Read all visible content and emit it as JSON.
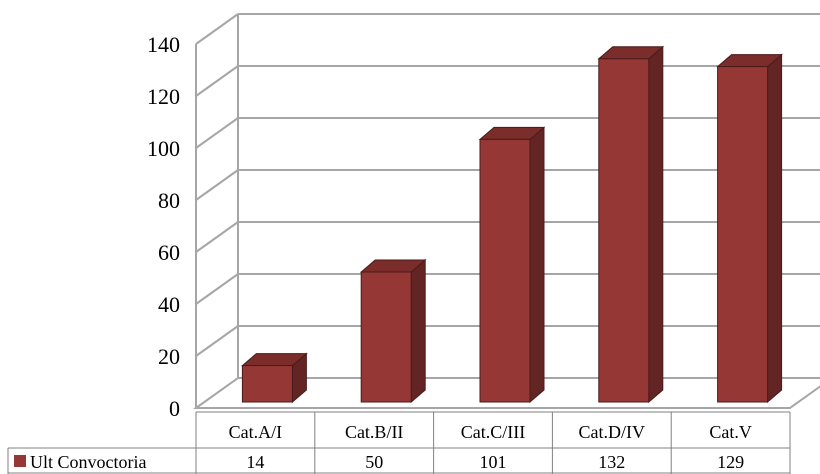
{
  "chart_data": {
    "type": "bar",
    "style": "3d-column-with-data-table",
    "categories": [
      "Cat.A/I",
      "Cat.B/II",
      "Cat.C/III",
      "Cat.D/IV",
      "Cat.V"
    ],
    "series": [
      {
        "name": "Ult Convoctoria",
        "values": [
          14,
          50,
          101,
          132,
          129
        ],
        "color": "#953735"
      }
    ],
    "y_ticks": [
      "0",
      "20",
      "40",
      "60",
      "80",
      "100",
      "120",
      "140"
    ],
    "ylim": [
      0,
      140
    ],
    "grid": true,
    "legend": "data-table-row",
    "colors": {
      "bar_front": "#953735",
      "bar_side": "#632523",
      "bar_top": "#7b2d2b",
      "grid": "#a6a6a6",
      "table_border": "#808080"
    }
  }
}
